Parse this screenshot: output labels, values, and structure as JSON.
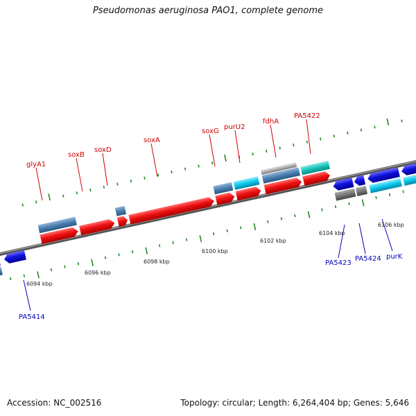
{
  "header": {
    "title": "Pseudomonas aeruginosa PAO1, complete genome"
  },
  "footer": {
    "accession": "Accession: NC_002516",
    "summary": "Topology: circular; Length: 6,264,404 bp; Genes: 5,646"
  },
  "scale_labels": [
    "6094 kbp",
    "6096 kbp",
    "6098 kbp",
    "6100 kbp",
    "6102 kbp",
    "6104 kbp",
    "6106 kbp"
  ],
  "colors": {
    "forward_cds": "#ee1111",
    "reverse_cds": "#1111dd",
    "steelblue": "#4a7fb0",
    "cyan": "#11ccee",
    "teal": "#1cc8c0",
    "gray": "#777777",
    "silver": "#b0b0b0",
    "backbone": "#777777",
    "tick": "#228822"
  },
  "genes_forward": [
    {
      "name": "glyA1"
    },
    {
      "name": "soxB"
    },
    {
      "name": "soxD"
    },
    {
      "name": "soxA"
    },
    {
      "name": "soxG"
    },
    {
      "name": "purU2"
    },
    {
      "name": "fdhA"
    },
    {
      "name": "PA5422"
    }
  ],
  "genes_reverse": [
    {
      "name": "PA5414"
    },
    {
      "name": "PA5423"
    },
    {
      "name": "PA5424"
    },
    {
      "name": "purK"
    }
  ]
}
